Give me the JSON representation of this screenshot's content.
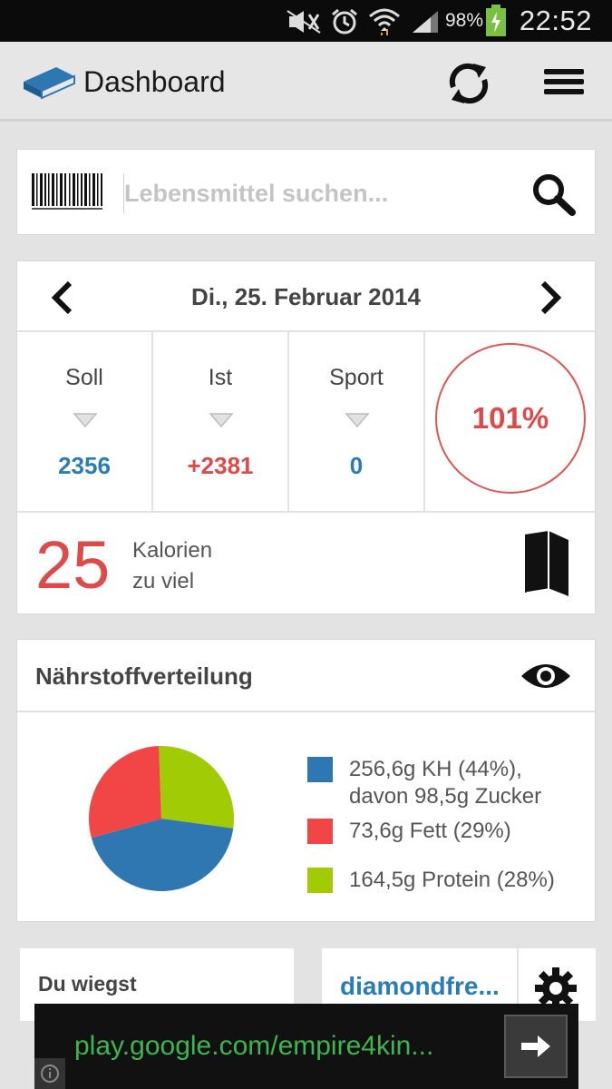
{
  "statusbar": {
    "battery_percent": "98%",
    "time": "22:52",
    "icons": [
      "mute-icon",
      "alarm-icon",
      "wifi-icon",
      "signal-icon",
      "battery-charging-icon"
    ]
  },
  "appbar": {
    "title": "Dashboard",
    "icons": [
      "book-logo-icon",
      "sync-icon",
      "menu-icon"
    ]
  },
  "search": {
    "placeholder": "Lebensmittel suchen..."
  },
  "day": {
    "date": "Di., 25. Februar 2014",
    "stats": [
      {
        "label": "Soll",
        "value": "2356"
      },
      {
        "label": "Ist",
        "value": "+2381"
      },
      {
        "label": "Sport",
        "value": "0"
      }
    ],
    "percent": "101%",
    "calories_big": "25",
    "calories_line1": "Kalorien",
    "calories_line2": "zu viel"
  },
  "nutrition": {
    "title": "Nährstoffverteilung",
    "chart_data": {
      "type": "pie",
      "slices": [
        {
          "name": "KH",
          "value": 44,
          "color": "#2f77b1"
        },
        {
          "name": "Fett",
          "value": 29,
          "color": "#f24646"
        },
        {
          "name": "Protein",
          "value": 28,
          "color": "#a1cc05"
        }
      ]
    },
    "legend": [
      {
        "line1": "256,6g KH (44%),",
        "line2": "davon 98,5g Zucker",
        "color": "#2f77b1"
      },
      {
        "line1": "73,6g Fett (29%)",
        "color": "#f24646"
      },
      {
        "line1": "164,5g Protein (28%)",
        "color": "#a1cc05"
      }
    ]
  },
  "weight": {
    "title": "Du wiegst"
  },
  "user": {
    "name": "diamondfre..."
  },
  "ad": {
    "url": "play.google.com/empire4kin..."
  },
  "colors": {
    "accent_blue": "#2a7cb5",
    "accent_red": "#dd4a4a",
    "ad_green": "#3db550"
  }
}
